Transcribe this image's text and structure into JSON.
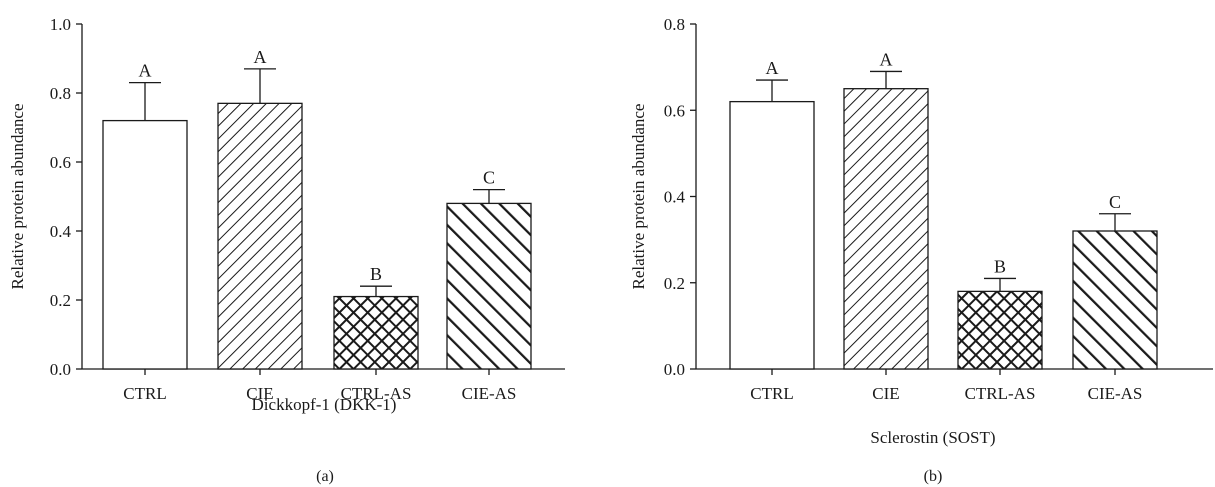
{
  "chart_data": [
    {
      "type": "bar",
      "panel_label": "(a)",
      "xlabel": "Dickkopf-1 (DKK-1)",
      "ylabel": "Relative protein abundance",
      "categories": [
        "CTRL",
        "CIE",
        "CTRL-AS",
        "CIE-AS"
      ],
      "values": [
        0.72,
        0.77,
        0.21,
        0.48
      ],
      "errors": [
        0.11,
        0.1,
        0.03,
        0.04
      ],
      "significance": [
        "A",
        "A",
        "B",
        "C"
      ],
      "ylim": [
        0.0,
        1.0
      ],
      "yticks": [
        "0.0",
        "0.2",
        "0.4",
        "0.6",
        "0.8",
        "1.0"
      ],
      "fill_patterns": [
        "none",
        "diagonal-down",
        "crosshatch",
        "diagonal-up"
      ],
      "grid": false
    },
    {
      "type": "bar",
      "panel_label": "(b)",
      "xlabel": "Sclerostin (SOST)",
      "ylabel": "Relative protein abundance",
      "categories": [
        "CTRL",
        "CIE",
        "CTRL-AS",
        "CIE-AS"
      ],
      "values": [
        0.62,
        0.65,
        0.18,
        0.32
      ],
      "errors": [
        0.05,
        0.04,
        0.03,
        0.04
      ],
      "significance": [
        "A",
        "A",
        "B",
        "C"
      ],
      "ylim": [
        0.0,
        0.8
      ],
      "yticks": [
        "0.0",
        "0.2",
        "0.4",
        "0.6",
        "0.8"
      ],
      "fill_patterns": [
        "none",
        "diagonal-down",
        "crosshatch",
        "diagonal-up"
      ],
      "grid": false
    }
  ]
}
